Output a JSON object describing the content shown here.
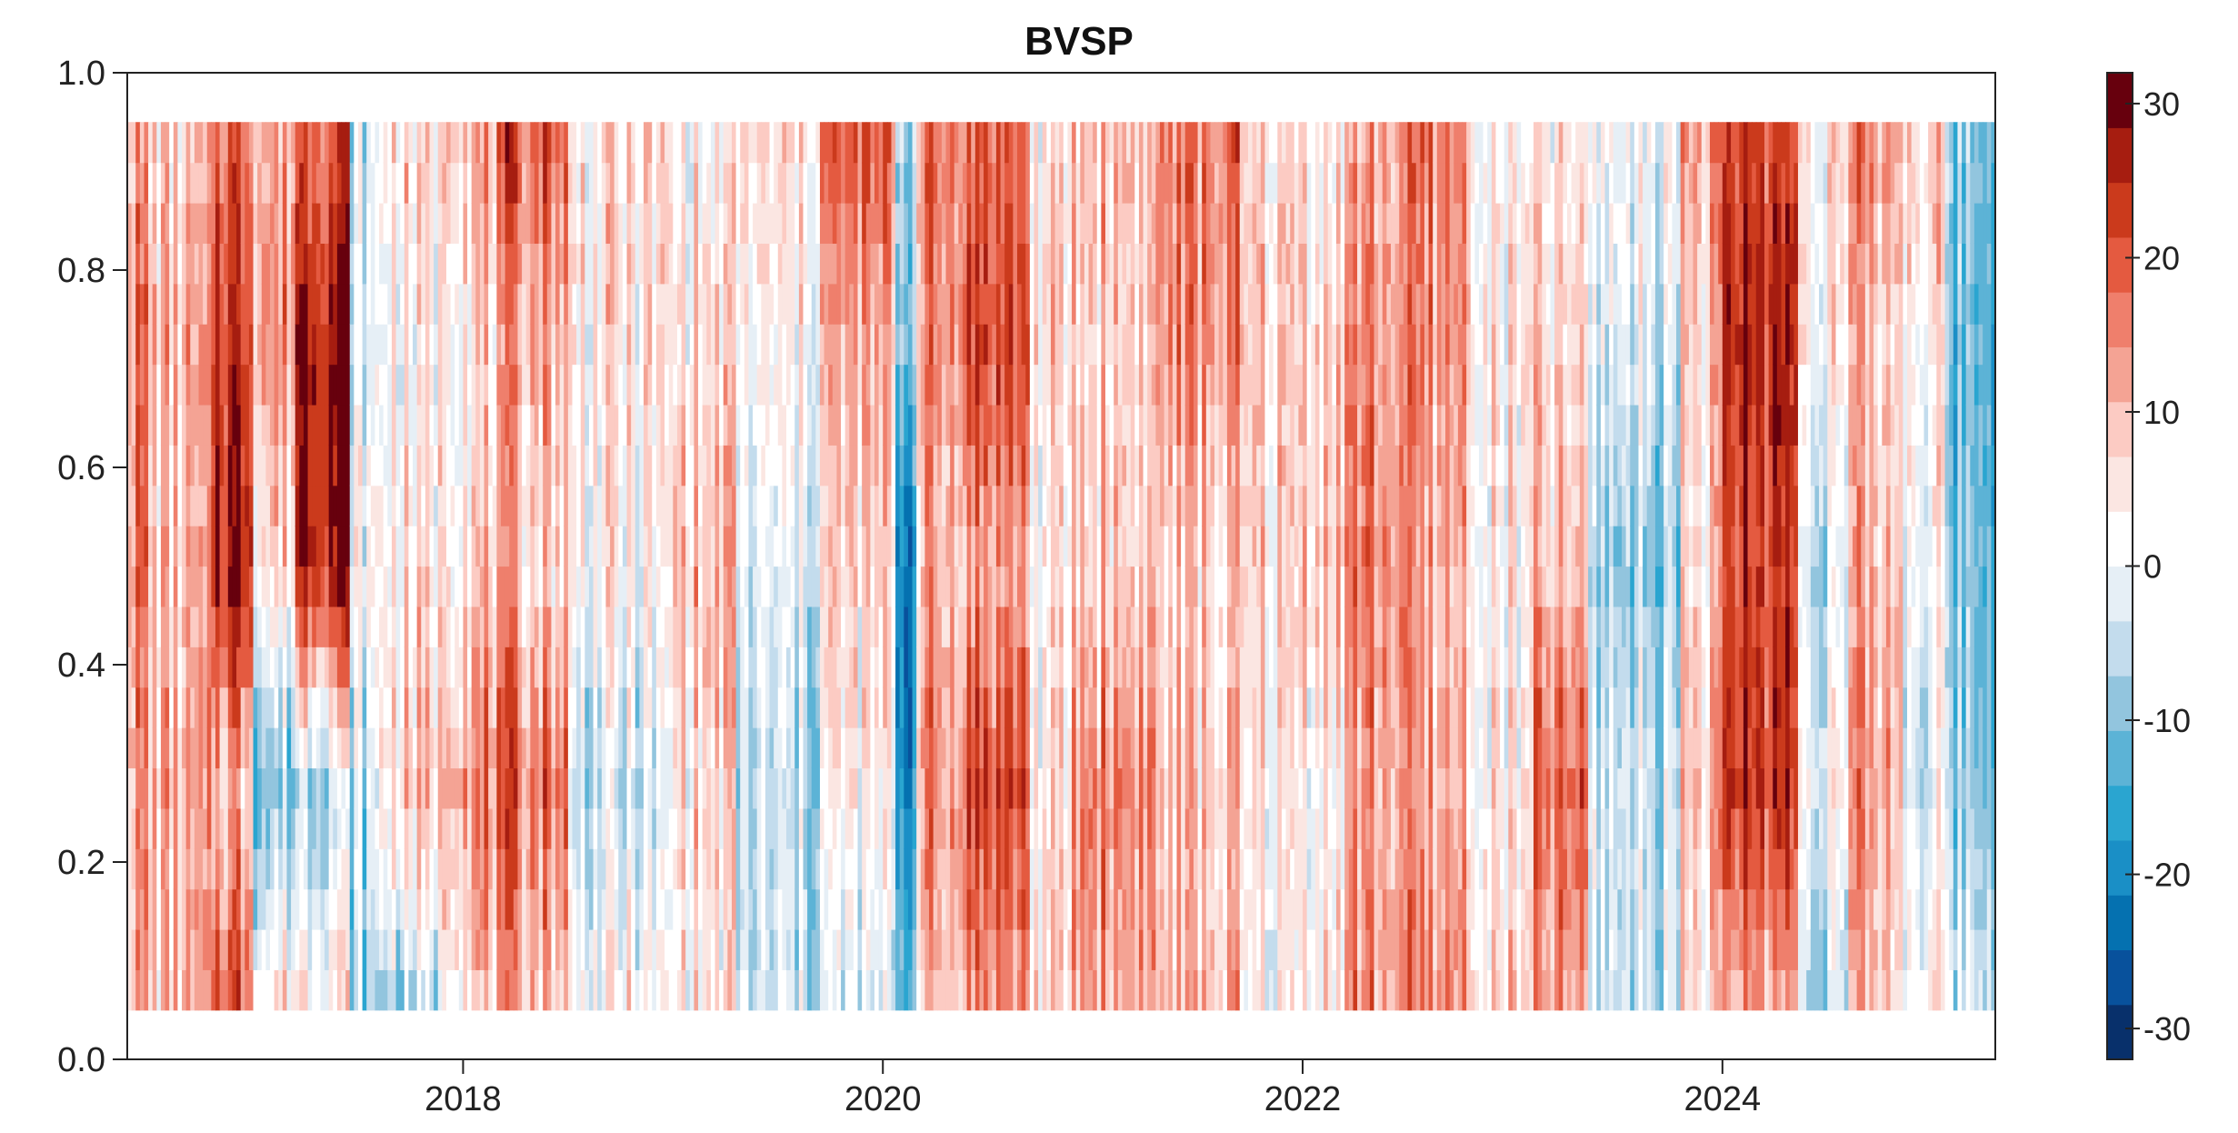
{
  "chart_data": {
    "type": "heatmap",
    "title": "BVSP",
    "x_ticks": [
      "2018",
      "2020",
      "2022",
      "2024"
    ],
    "y_ticks": [
      "0.0",
      "0.2",
      "0.4",
      "0.6",
      "0.8",
      "1.0"
    ],
    "colorbar_ticks": [
      "30",
      "20",
      "10",
      "0",
      "-10",
      "-20",
      "-30"
    ],
    "xlim": [
      2016.4,
      2025.3
    ],
    "ylim": [
      0.0,
      1.0
    ],
    "data_y_range": [
      0.05,
      0.95
    ],
    "value_range": [
      -32,
      32
    ],
    "palette": [
      "#08306b",
      "#08519c",
      "#0571b0",
      "#1a8fc6",
      "#2aa5d0",
      "#5cb3d6",
      "#92c5de",
      "#c3dced",
      "#e6eff6",
      "#ffffff",
      "#fbe6e2",
      "#fccbc3",
      "#f4a394",
      "#ef7f6c",
      "#e45a40",
      "#cb3a1c",
      "#a61d10",
      "#67000d"
    ],
    "zones": [
      {
        "x0": 2016.4,
        "x1": 2016.5,
        "values": [
          12,
          14,
          16,
          16,
          12
        ]
      },
      {
        "x0": 2016.5,
        "x1": 2016.8,
        "values": [
          8,
          10,
          8,
          10,
          6
        ]
      },
      {
        "x0": 2016.8,
        "x1": 2017.0,
        "values": [
          22,
          10,
          28,
          24,
          18
        ]
      },
      {
        "x0": 2017.0,
        "x1": 2017.2,
        "values": [
          6,
          -10,
          6,
          14,
          12
        ]
      },
      {
        "x0": 2017.2,
        "x1": 2017.45,
        "values": [
          6,
          -4,
          28,
          30,
          20
        ]
      },
      {
        "x0": 2017.45,
        "x1": 2017.6,
        "values": [
          -8,
          -4,
          2,
          -2,
          -4
        ]
      },
      {
        "x0": 2017.6,
        "x1": 2017.9,
        "values": [
          -6,
          8,
          4,
          2,
          6
        ]
      },
      {
        "x0": 2017.9,
        "x1": 2018.2,
        "values": [
          8,
          16,
          8,
          6,
          14
        ]
      },
      {
        "x0": 2018.2,
        "x1": 2018.5,
        "values": [
          10,
          18,
          8,
          12,
          20
        ]
      },
      {
        "x0": 2018.5,
        "x1": 2019.0,
        "values": [
          2,
          -4,
          2,
          4,
          6
        ]
      },
      {
        "x0": 2019.0,
        "x1": 2019.3,
        "values": [
          4,
          6,
          10,
          6,
          2
        ]
      },
      {
        "x0": 2019.3,
        "x1": 2019.7,
        "values": [
          -4,
          -6,
          -2,
          2,
          6
        ]
      },
      {
        "x0": 2019.7,
        "x1": 2020.05,
        "values": [
          -4,
          2,
          6,
          10,
          18
        ]
      },
      {
        "x0": 2020.05,
        "x1": 2020.15,
        "values": [
          -10,
          -18,
          -20,
          -8,
          -6
        ]
      },
      {
        "x0": 2020.15,
        "x1": 2020.35,
        "values": [
          8,
          14,
          10,
          14,
          16
        ]
      },
      {
        "x0": 2020.35,
        "x1": 2020.7,
        "values": [
          14,
          22,
          12,
          22,
          18
        ]
      },
      {
        "x0": 2020.7,
        "x1": 2020.9,
        "values": [
          6,
          4,
          2,
          6,
          4
        ]
      },
      {
        "x0": 2020.9,
        "x1": 2021.3,
        "values": [
          12,
          16,
          8,
          8,
          10
        ]
      },
      {
        "x0": 2021.3,
        "x1": 2021.7,
        "values": [
          10,
          8,
          6,
          14,
          16
        ]
      },
      {
        "x0": 2021.7,
        "x1": 2022.0,
        "values": [
          2,
          4,
          6,
          8,
          6
        ]
      },
      {
        "x0": 2022.0,
        "x1": 2022.2,
        "values": [
          6,
          4,
          10,
          8,
          4
        ]
      },
      {
        "x0": 2022.2,
        "x1": 2022.5,
        "values": [
          14,
          12,
          16,
          14,
          12
        ]
      },
      {
        "x0": 2022.5,
        "x1": 2022.8,
        "values": [
          14,
          10,
          10,
          14,
          16
        ]
      },
      {
        "x0": 2022.8,
        "x1": 2023.1,
        "values": [
          6,
          4,
          2,
          4,
          2
        ]
      },
      {
        "x0": 2023.1,
        "x1": 2023.35,
        "values": [
          10,
          18,
          8,
          6,
          4
        ]
      },
      {
        "x0": 2023.35,
        "x1": 2023.8,
        "values": [
          -4,
          -2,
          -8,
          -2,
          2
        ]
      },
      {
        "x0": 2023.8,
        "x1": 2024.0,
        "values": [
          4,
          10,
          6,
          8,
          12
        ]
      },
      {
        "x0": 2024.0,
        "x1": 2024.35,
        "values": [
          12,
          24,
          22,
          26,
          22
        ]
      },
      {
        "x0": 2024.35,
        "x1": 2024.6,
        "values": [
          -6,
          2,
          -2,
          4,
          6
        ]
      },
      {
        "x0": 2024.6,
        "x1": 2024.85,
        "values": [
          8,
          12,
          10,
          8,
          14
        ]
      },
      {
        "x0": 2024.85,
        "x1": 2025.05,
        "values": [
          4,
          -2,
          2,
          4,
          10
        ]
      },
      {
        "x0": 2025.05,
        "x1": 2025.3,
        "values": [
          -2,
          -8,
          -10,
          -12,
          -8
        ]
      }
    ]
  }
}
